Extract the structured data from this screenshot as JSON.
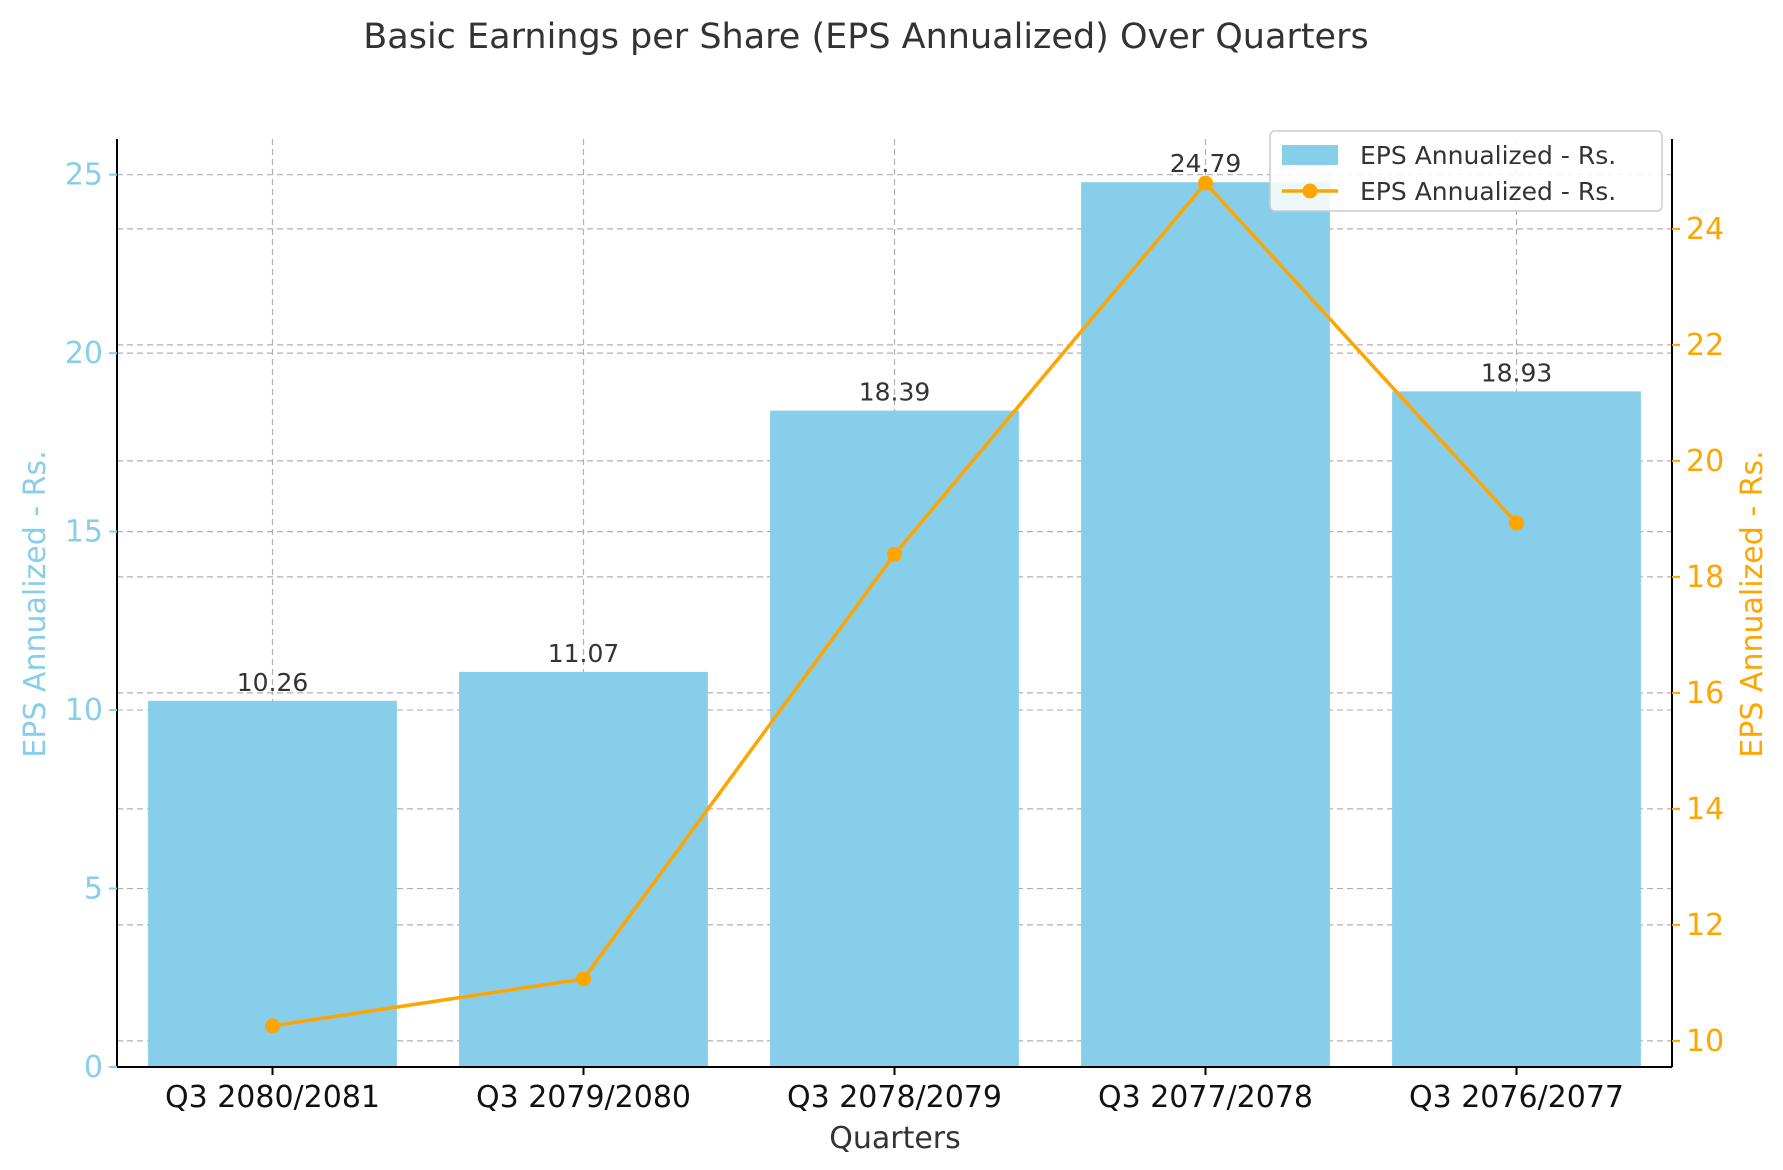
{
  "chart_data": {
    "type": "bar+line",
    "title": "Basic Earnings per Share (EPS Annualized) Over Quarters",
    "xlabel": "Quarters",
    "ylabel_left": "EPS Annualized - Rs.",
    "ylabel_right": "EPS Annualized - Rs.",
    "categories": [
      "Q3 2080/2081",
      "Q3 2079/2080",
      "Q3 2078/2079",
      "Q3 2077/2078",
      "Q3 2076/2077"
    ],
    "ylim_left": [
      0,
      26
    ],
    "ylim_right": [
      9.55,
      25.55
    ],
    "yticks_left": [
      0,
      5,
      10,
      15,
      20,
      25
    ],
    "yticks_right": [
      10,
      12,
      14,
      16,
      18,
      20,
      22,
      24
    ],
    "grid": true,
    "legend_position": "top-right",
    "series": [
      {
        "name": "EPS Annualized - Rs.",
        "kind": "bar",
        "axis": "left",
        "color": "#87CEEB",
        "values": [
          10.26,
          11.07,
          18.39,
          24.79,
          18.93
        ],
        "labels": [
          "10.26",
          "11.07",
          "18.39",
          "24.79",
          "18.93"
        ]
      },
      {
        "name": "EPS Annualized - Rs.",
        "kind": "line",
        "axis": "right",
        "color": "#FFA500",
        "values": [
          10.26,
          11.07,
          18.39,
          24.79,
          18.93
        ]
      }
    ],
    "colors": {
      "left_axis": "#87CEEB",
      "right_axis": "#FFA500",
      "text": "#333333",
      "axis_line": "#000000"
    }
  }
}
